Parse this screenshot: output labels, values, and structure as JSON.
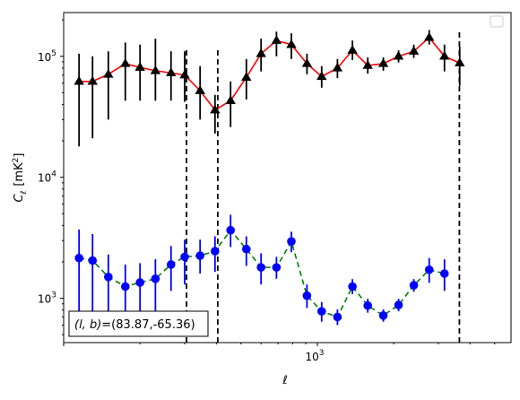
{
  "chart_data": {
    "type": "scatter",
    "xscale": "log",
    "yscale": "log",
    "xlim": [
      100,
      5800
    ],
    "ylim": [
      430,
      230000
    ],
    "xlabel": "ℓ",
    "ylabel_main": "C",
    "ylabel_sub": "ℓ",
    "ylabel_unit": "[mK",
    "ylabel_unit_sup": "2",
    "ylabel_unit_close": "]",
    "x_ticks": [
      {
        "value": 1000,
        "label": "10",
        "exp": "3"
      }
    ],
    "y_ticks": [
      {
        "value": 1000,
        "label": "10",
        "exp": "3"
      },
      {
        "value": 10000,
        "label": "10",
        "exp": "4"
      },
      {
        "value": 100000,
        "label": "10",
        "exp": "5"
      }
    ],
    "legend": {
      "placement": "upper right",
      "entries": []
    },
    "vlines": [
      {
        "x": 305,
        "color": "#000000",
        "style": "dashed",
        "y_top": 120000
      },
      {
        "x": 405,
        "color": "#000000",
        "style": "dashed",
        "y_top": 120000
      },
      {
        "x": 3630,
        "color": "#000000",
        "style": "dashed",
        "y_top": 160000
      }
    ],
    "annotation": {
      "prefix": "(l, b)",
      "value": "=(83.87,-65.36)"
    },
    "series": [
      {
        "color": "#ff0000",
        "marker": "triangle",
        "marker_color": "#000000",
        "errbar_color": "#000000",
        "linestyle": "solid",
        "points": [
          {
            "x": 115,
            "y": 62000,
            "lo": 18000,
            "hi": 105000
          },
          {
            "x": 130,
            "y": 62000,
            "lo": 21000,
            "hi": 100000
          },
          {
            "x": 150,
            "y": 71000,
            "lo": 30000,
            "hi": 110000
          },
          {
            "x": 175,
            "y": 87000,
            "lo": 43000,
            "hi": 130000
          },
          {
            "x": 200,
            "y": 81000,
            "lo": 43000,
            "hi": 125000
          },
          {
            "x": 230,
            "y": 76000,
            "lo": 43000,
            "hi": 140000
          },
          {
            "x": 265,
            "y": 73000,
            "lo": 43000,
            "hi": 110000
          },
          {
            "x": 300,
            "y": 70000,
            "lo": 42000,
            "hi": 110000
          },
          {
            "x": 345,
            "y": 52000,
            "lo": 30000,
            "hi": 83000
          },
          {
            "x": 395,
            "y": 36000,
            "lo": 23000,
            "hi": 48000
          },
          {
            "x": 455,
            "y": 43000,
            "lo": 26000,
            "hi": 62000
          },
          {
            "x": 525,
            "y": 67000,
            "lo": 44000,
            "hi": 95000
          },
          {
            "x": 600,
            "y": 105000,
            "lo": 75000,
            "hi": 140000
          },
          {
            "x": 690,
            "y": 135000,
            "lo": 100000,
            "hi": 160000
          },
          {
            "x": 790,
            "y": 125000,
            "lo": 95000,
            "hi": 155000
          },
          {
            "x": 910,
            "y": 87000,
            "lo": 71000,
            "hi": 105000
          },
          {
            "x": 1040,
            "y": 68000,
            "lo": 55000,
            "hi": 83000
          },
          {
            "x": 1200,
            "y": 80000,
            "lo": 66000,
            "hi": 95000
          },
          {
            "x": 1375,
            "y": 112000,
            "lo": 93000,
            "hi": 135000
          },
          {
            "x": 1580,
            "y": 84000,
            "lo": 72000,
            "hi": 98000
          },
          {
            "x": 1820,
            "y": 87000,
            "lo": 76000,
            "hi": 98000
          },
          {
            "x": 2090,
            "y": 100000,
            "lo": 89000,
            "hi": 112000
          },
          {
            "x": 2400,
            "y": 110000,
            "lo": 97000,
            "hi": 125000
          },
          {
            "x": 2760,
            "y": 143000,
            "lo": 125000,
            "hi": 165000
          },
          {
            "x": 3170,
            "y": 100000,
            "lo": 75000,
            "hi": 125000
          },
          {
            "x": 3640,
            "y": 88000,
            "lo": 57000,
            "hi": 120000
          }
        ]
      },
      {
        "color": "#008000",
        "marker": "circle",
        "marker_color": "#0000ff",
        "errbar_color": "#0000ff",
        "linestyle": "dashed",
        "points": [
          {
            "x": 115,
            "y": 2150,
            "lo": 600,
            "hi": 3700
          },
          {
            "x": 130,
            "y": 2050,
            "lo": 760,
            "hi": 3400
          },
          {
            "x": 150,
            "y": 1500,
            "lo": 700,
            "hi": 2300
          },
          {
            "x": 175,
            "y": 1250,
            "lo": 620,
            "hi": 1900
          },
          {
            "x": 200,
            "y": 1350,
            "lo": 720,
            "hi": 1950
          },
          {
            "x": 230,
            "y": 1450,
            "lo": 770,
            "hi": 2100
          },
          {
            "x": 265,
            "y": 1900,
            "lo": 1150,
            "hi": 2700
          },
          {
            "x": 300,
            "y": 2200,
            "lo": 1300,
            "hi": 3050
          },
          {
            "x": 345,
            "y": 2250,
            "lo": 1600,
            "hi": 3050
          },
          {
            "x": 395,
            "y": 2450,
            "lo": 1650,
            "hi": 3250
          },
          {
            "x": 455,
            "y": 3650,
            "lo": 2650,
            "hi": 4900
          },
          {
            "x": 525,
            "y": 2550,
            "lo": 1850,
            "hi": 3250
          },
          {
            "x": 600,
            "y": 1800,
            "lo": 1300,
            "hi": 2350
          },
          {
            "x": 690,
            "y": 1800,
            "lo": 1450,
            "hi": 2200
          },
          {
            "x": 790,
            "y": 2950,
            "lo": 2400,
            "hi": 3550
          },
          {
            "x": 910,
            "y": 1050,
            "lo": 830,
            "hi": 1300
          },
          {
            "x": 1040,
            "y": 780,
            "lo": 640,
            "hi": 930
          },
          {
            "x": 1200,
            "y": 700,
            "lo": 600,
            "hi": 810
          },
          {
            "x": 1375,
            "y": 1250,
            "lo": 1080,
            "hi": 1440
          },
          {
            "x": 1580,
            "y": 870,
            "lo": 760,
            "hi": 990
          },
          {
            "x": 1820,
            "y": 720,
            "lo": 640,
            "hi": 810
          },
          {
            "x": 2090,
            "y": 880,
            "lo": 780,
            "hi": 990
          },
          {
            "x": 2400,
            "y": 1280,
            "lo": 1130,
            "hi": 1440
          },
          {
            "x": 2760,
            "y": 1720,
            "lo": 1340,
            "hi": 2150
          },
          {
            "x": 3170,
            "y": 1600,
            "lo": 1150,
            "hi": 2100
          }
        ]
      }
    ]
  }
}
